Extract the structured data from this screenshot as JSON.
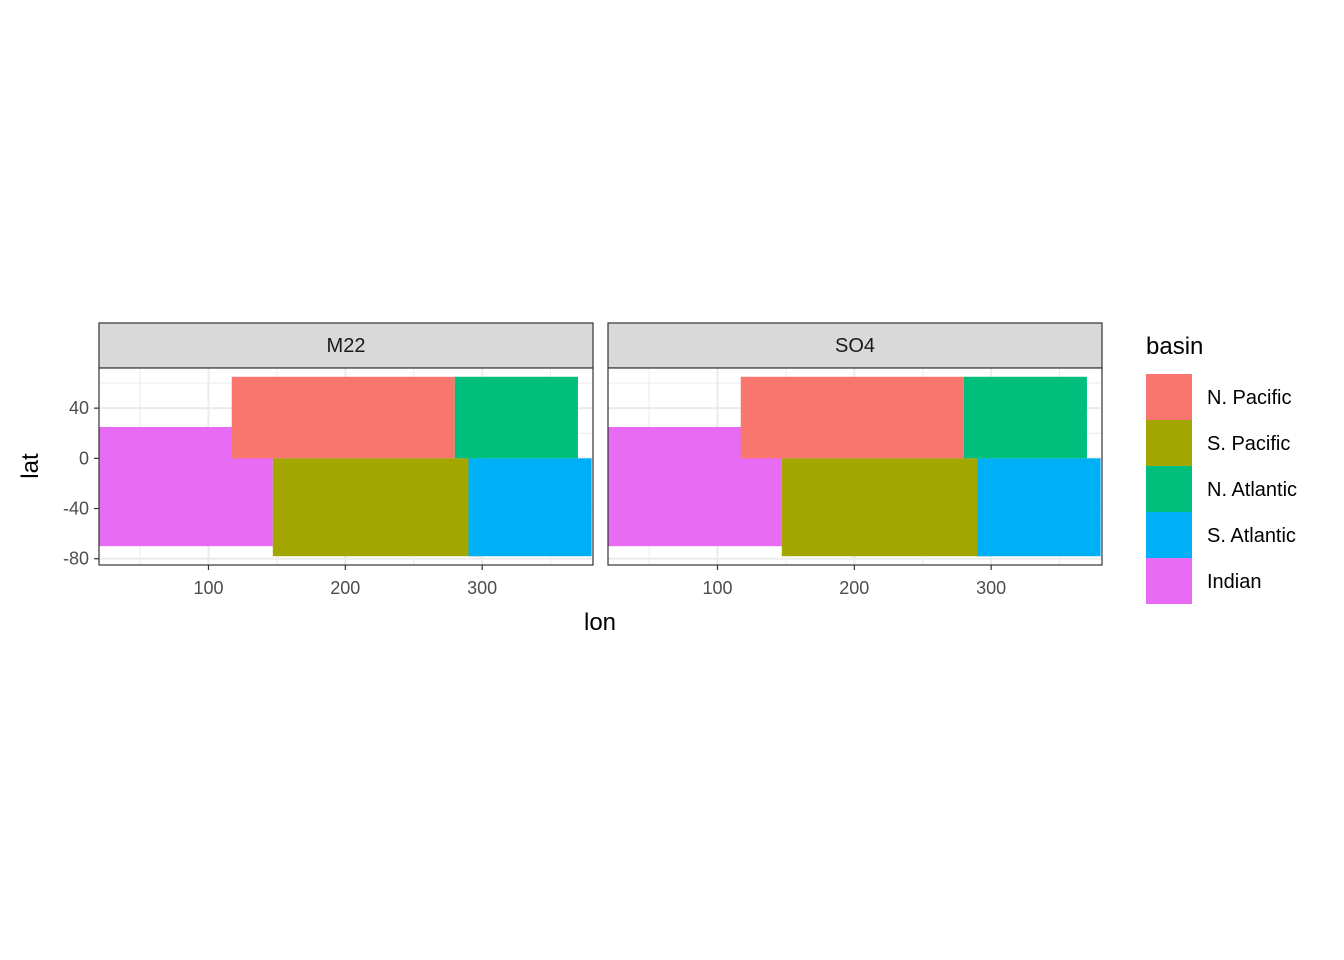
{
  "chart_data": {
    "type": "heatmap",
    "facets": [
      "M22",
      "SO4"
    ],
    "xlabel": "lon",
    "ylabel": "lat",
    "xlim": [
      20,
      381
    ],
    "ylim": [
      -85,
      72
    ],
    "x_ticks": [
      100,
      200,
      300
    ],
    "x_tick_labels": [
      "100",
      "200",
      "300"
    ],
    "y_ticks": [
      40,
      0,
      -40,
      -80
    ],
    "y_tick_labels": [
      "40",
      "0",
      "-40",
      "-80"
    ],
    "grid": true,
    "legend": {
      "title": "basin",
      "placement": "right",
      "entries": [
        {
          "label": "N. Pacific",
          "color": "#F8766D"
        },
        {
          "label": "S. Pacific",
          "color": "#A3A500"
        },
        {
          "label": "N. Atlantic",
          "color": "#00BF7D"
        },
        {
          "label": "S. Atlantic",
          "color": "#00B0F6"
        },
        {
          "label": "Indian",
          "color": "#E76BF3"
        }
      ]
    },
    "regions": [
      {
        "basin": "Indian",
        "lon_range": [
          20,
          147
        ],
        "lat_range": [
          -70,
          25
        ]
      },
      {
        "basin": "N. Pacific",
        "lon_range": [
          117,
          280
        ],
        "lat_range": [
          0,
          65
        ]
      },
      {
        "basin": "S. Pacific",
        "lon_range": [
          147,
          300
        ],
        "lat_range": [
          -78,
          0
        ]
      },
      {
        "basin": "N. Atlantic",
        "lon_range": [
          280,
          370
        ],
        "lat_range": [
          0,
          65
        ]
      },
      {
        "basin": "S. Atlantic",
        "lon_range": [
          290,
          380
        ],
        "lat_range": [
          -78,
          0
        ]
      }
    ]
  }
}
